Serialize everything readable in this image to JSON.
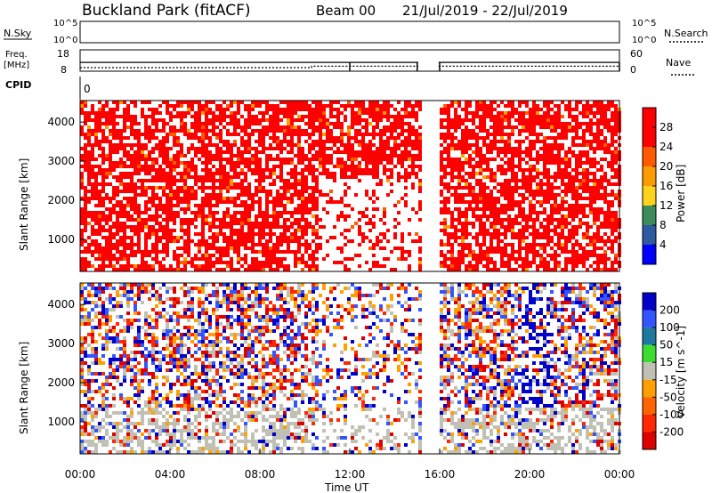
{
  "header": {
    "station": "Buckland Park (fitACF)",
    "beam": "Beam 00",
    "date_range": "21/Jul/2019 - 22/Jul/2019"
  },
  "top_panels": {
    "nsky_label": "N.Sky",
    "nsky_ticks": [
      "10^5",
      "10^0"
    ],
    "nsearch_label": "N.Search",
    "nsearch_ticks": [
      "10^5",
      "10^0"
    ],
    "freq_label": "Freq.",
    "freq_unit": "[MHz]",
    "freq_ticks": [
      "18",
      "8"
    ],
    "nave_label": "Nave",
    "nave_ticks": [
      "60",
      "0"
    ],
    "cpid_label": "CPID",
    "cpid_value": "0"
  },
  "chart_data": [
    {
      "type": "heatmap",
      "name": "power",
      "ylabel": "Slant Range [km]",
      "y_ticks": [
        1000,
        2000,
        3000,
        4000
      ],
      "ylim": [
        180,
        4550
      ],
      "xlim_hours": [
        0,
        24
      ],
      "colorbar": {
        "label": "Power [dB]",
        "ticks": [
          "28",
          "24",
          "20",
          "16",
          "12",
          "8",
          "4"
        ],
        "colors": [
          "#ff0000",
          "#ff0000",
          "#ff5a00",
          "#ff9c00",
          "#ffd21e",
          "#3c8c5a",
          "#2d5aa0",
          "#0000ff"
        ]
      },
      "data_gap_hours": [
        15.05,
        15.95
      ],
      "dominant_value": "28+ dB (red) across most ranges"
    },
    {
      "type": "heatmap",
      "name": "velocity",
      "ylabel": "Slant Range [km]",
      "y_ticks": [
        1000,
        2000,
        3000,
        4000
      ],
      "ylim": [
        180,
        4550
      ],
      "xlim_hours": [
        0,
        24
      ],
      "colorbar": {
        "label": "Velocity [m s^-1]",
        "ticks": [
          "200",
          "100",
          "50",
          "15",
          "-15",
          "-50",
          "-100",
          "-200"
        ],
        "colors": [
          "#0000c8",
          "#3255ff",
          "#1e78a0",
          "#3cdc32",
          "#c0c0b4",
          "#ffa000",
          "#ff6400",
          "#ff2800",
          "#dc0000"
        ]
      },
      "data_gap_hours": [
        15.05,
        15.95
      ]
    }
  ],
  "x_axis": {
    "label": "Time UT",
    "ticks": [
      "00:00",
      "04:00",
      "08:00",
      "12:00",
      "16:00",
      "20:00",
      "00:00"
    ]
  },
  "freq_series": {
    "freq_mhz": [
      [
        0,
        12.1
      ],
      [
        15.05,
        12.1
      ],
      [
        15.95,
        12.1
      ],
      [
        24,
        12.1
      ]
    ],
    "nave_steps": [
      [
        0,
        10
      ],
      [
        10.3,
        10
      ],
      [
        10.3,
        14
      ],
      [
        15.05,
        14
      ],
      [
        15.95,
        14
      ],
      [
        24,
        14
      ]
    ],
    "ticks_at_hours": [
      12,
      15,
      16,
      24
    ]
  }
}
